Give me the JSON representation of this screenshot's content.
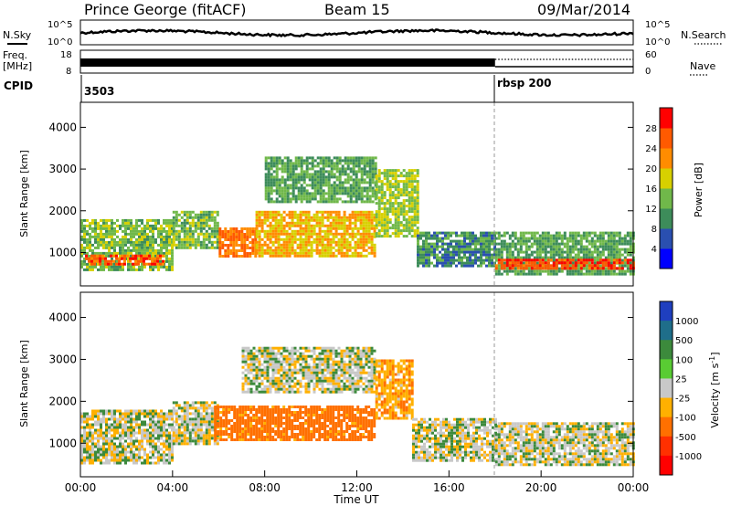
{
  "header": {
    "station": "Prince George (fitACF)",
    "beam": "Beam 15",
    "date": "09/Mar/2014"
  },
  "aux_panels": {
    "nsky_label": "N.Sky",
    "nsky_ticks": [
      "10^5",
      "10^0"
    ],
    "nsearch_label": "N.Search",
    "nsearch_ticks": [
      "10^5",
      "10^0"
    ],
    "freq_label_1": "Freq.",
    "freq_label_2": "[MHz]",
    "freq_ticks": [
      "18",
      "8"
    ],
    "nave_label": "Nave",
    "nave_ticks": [
      "60",
      "0"
    ],
    "cpid_label": "CPID",
    "cpid_segments": [
      {
        "label": "3503",
        "start_hour": 0
      },
      {
        "label": "rbsp 200",
        "start_hour": 18
      }
    ]
  },
  "colors": {
    "power_scale": [
      "#0000ff",
      "#2a4fb0",
      "#3d8c5a",
      "#70b84a",
      "#d7d000",
      "#ff8c00",
      "#ff5a00",
      "#ff0000"
    ],
    "velocity_scale": [
      "#1f3fbf",
      "#1f6e8a",
      "#3c8a3c",
      "#59cc33",
      "#c8c8c8",
      "#ffb000",
      "#ff7000",
      "#ff3000",
      "#ff0000"
    ],
    "ground_scatter": "#c8c8c8"
  },
  "chart_data": [
    {
      "type": "heatmap",
      "panel": "power",
      "ylabel": "Slant Range [km]",
      "yticks": [
        "1000",
        "2000",
        "3000",
        "4000"
      ],
      "ylim": [
        200,
        4600
      ],
      "xlim_hours": [
        0,
        24
      ],
      "colorbar": {
        "label": "Power [dB]",
        "ticks": [
          "4",
          "8",
          "12",
          "16",
          "20",
          "24",
          "28"
        ],
        "range": [
          0,
          32
        ]
      },
      "regions": [
        {
          "start_hour": 0.0,
          "end_hour": 4.0,
          "range_low_km": 600,
          "range_high_km": 1800,
          "power_db": 14
        },
        {
          "start_hour": 0.2,
          "end_hour": 3.6,
          "range_low_km": 700,
          "range_high_km": 950,
          "power_db": 26
        },
        {
          "start_hour": 4.0,
          "end_hour": 6.0,
          "range_low_km": 1100,
          "range_high_km": 2000,
          "power_db": 14
        },
        {
          "start_hour": 6.0,
          "end_hour": 7.6,
          "range_low_km": 900,
          "range_high_km": 1600,
          "power_db": 24
        },
        {
          "start_hour": 7.6,
          "end_hour": 12.8,
          "range_low_km": 900,
          "range_high_km": 2000,
          "power_db": 20
        },
        {
          "start_hour": 8.0,
          "end_hour": 12.8,
          "range_low_km": 2200,
          "range_high_km": 3300,
          "power_db": 12
        },
        {
          "start_hour": 12.8,
          "end_hour": 14.6,
          "range_low_km": 1400,
          "range_high_km": 3000,
          "power_db": 16
        },
        {
          "start_hour": 14.6,
          "end_hour": 18.0,
          "range_low_km": 700,
          "range_high_km": 1500,
          "power_db": 10
        },
        {
          "start_hour": 18.0,
          "end_hour": 24.0,
          "range_low_km": 500,
          "range_high_km": 1500,
          "power_db": 12
        },
        {
          "start_hour": 18.0,
          "end_hour": 24.0,
          "range_low_km": 650,
          "range_high_km": 850,
          "power_db": 27
        }
      ]
    },
    {
      "type": "heatmap",
      "panel": "velocity",
      "ylabel": "Slant Range [km]",
      "yticks": [
        "1000",
        "2000",
        "3000",
        "4000"
      ],
      "ylim": [
        200,
        4600
      ],
      "xlim_hours": [
        0,
        24
      ],
      "xticks": [
        "00:00",
        "04:00",
        "08:00",
        "12:00",
        "16:00",
        "20:00",
        "00:00"
      ],
      "xlabel": "Time UT",
      "colorbar": {
        "label": "Velocity [m s^-1]",
        "ticks": [
          "1000",
          "500",
          "100",
          "25",
          "-25",
          "-100",
          "-500",
          "-1000"
        ]
      },
      "regions": [
        {
          "start_hour": 0.0,
          "end_hour": 4.0,
          "range_low_km": 500,
          "range_high_km": 1800,
          "velocity": 0
        },
        {
          "start_hour": 4.0,
          "end_hour": 6.0,
          "range_low_km": 1000,
          "range_high_km": 2000,
          "velocity": 0
        },
        {
          "start_hour": 5.8,
          "end_hour": 12.8,
          "range_low_km": 1100,
          "range_high_km": 1900,
          "velocity": -150
        },
        {
          "start_hour": 7.0,
          "end_hour": 12.8,
          "range_low_km": 2200,
          "range_high_km": 3300,
          "velocity": 0
        },
        {
          "start_hour": 12.8,
          "end_hour": 14.4,
          "range_low_km": 1600,
          "range_high_km": 3000,
          "velocity": -80
        },
        {
          "start_hour": 14.4,
          "end_hour": 18.0,
          "range_low_km": 600,
          "range_high_km": 1600,
          "velocity": 0
        },
        {
          "start_hour": 18.0,
          "end_hour": 24.0,
          "range_low_km": 500,
          "range_high_km": 1500,
          "velocity": 0
        }
      ]
    }
  ]
}
